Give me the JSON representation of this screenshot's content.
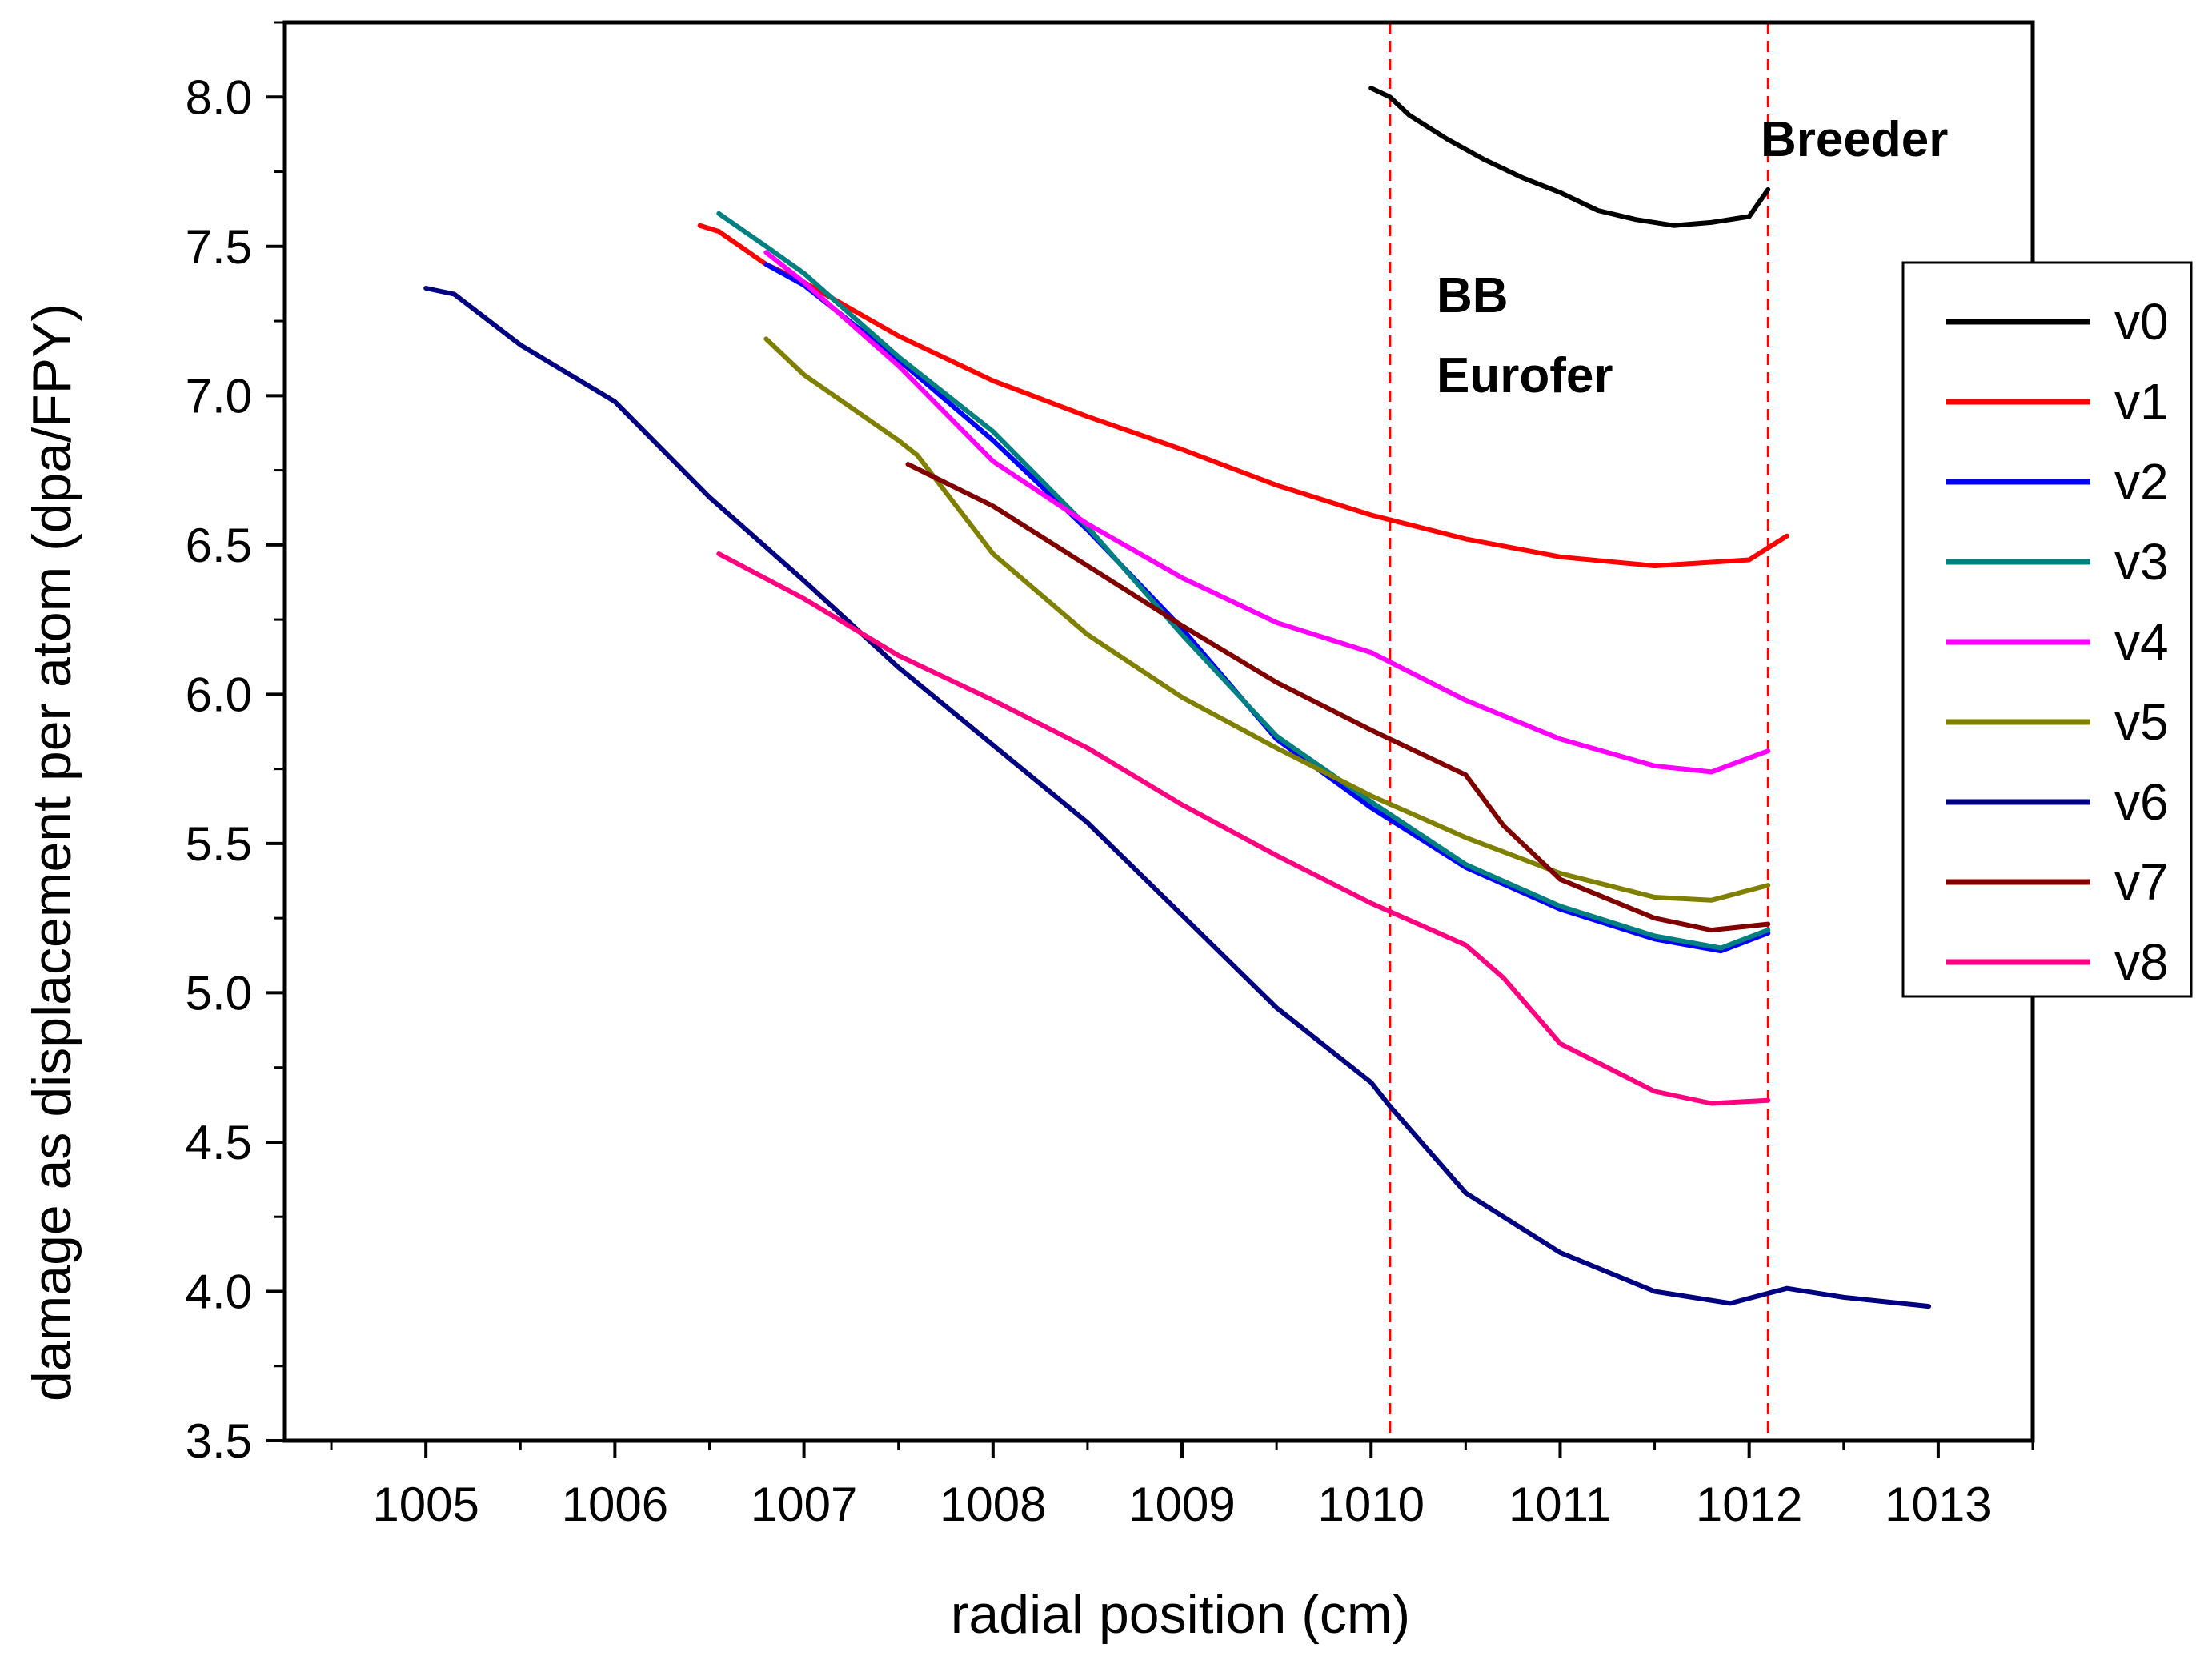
{
  "chart_data": {
    "type": "line",
    "title": "",
    "xlabel": "radial position (cm)",
    "ylabel": "damage as displacement per atom (dpa/FPY)",
    "xlim": [
      1004.25,
      1013.5
    ],
    "ylim": [
      3.5,
      8.25
    ],
    "xticks": [
      "1005",
      "1006",
      "1007",
      "1008",
      "1009",
      "1010",
      "1011",
      "1012",
      "1013"
    ],
    "yticks": [
      "3.5",
      "4.0",
      "4.5",
      "5.0",
      "5.5",
      "6.0",
      "6.5",
      "7.0",
      "7.5",
      "8.0"
    ],
    "grid": false,
    "legend_position": "right",
    "vlines": [
      {
        "x": 1010.1,
        "color": "#ff0000",
        "style": "dashed"
      },
      {
        "x": 1012.1,
        "color": "#ff0000",
        "style": "dashed"
      }
    ],
    "annotations": [
      {
        "text": "Breeder",
        "x": 1012.2,
        "y": 7.8
      },
      {
        "text": "BB",
        "x": 1010.55,
        "y": 7.27
      },
      {
        "text": "Eurofer",
        "x": 1010.55,
        "y": 7.04
      }
    ],
    "series": [
      {
        "name": "v0",
        "color": "#000000",
        "x": [
          1010.0,
          1010.1,
          1010.2,
          1010.4,
          1010.6,
          1010.8,
          1011.0,
          1011.2,
          1011.4,
          1011.6,
          1011.8,
          1012.0,
          1012.1
        ],
        "y": [
          8.03,
          8.0,
          7.94,
          7.86,
          7.79,
          7.73,
          7.68,
          7.62,
          7.59,
          7.57,
          7.58,
          7.6,
          7.69
        ]
      },
      {
        "name": "v1",
        "color": "#ff0000",
        "x": [
          1006.45,
          1006.55,
          1006.8,
          1007.0,
          1007.5,
          1008.0,
          1008.5,
          1009.0,
          1009.5,
          1010.0,
          1010.5,
          1011.0,
          1011.5,
          1012.0,
          1012.2
        ],
        "y": [
          7.57,
          7.55,
          7.44,
          7.38,
          7.2,
          7.05,
          6.93,
          6.82,
          6.7,
          6.6,
          6.52,
          6.46,
          6.43,
          6.45,
          6.53
        ]
      },
      {
        "name": "v2",
        "color": "#0000ff",
        "x": [
          1006.8,
          1007.0,
          1007.5,
          1008.0,
          1008.5,
          1009.0,
          1009.5,
          1010.0,
          1010.5,
          1011.0,
          1011.5,
          1011.85,
          1012.1
        ],
        "y": [
          7.44,
          7.37,
          7.12,
          6.85,
          6.55,
          6.22,
          5.85,
          5.62,
          5.42,
          5.28,
          5.18,
          5.14,
          5.2
        ]
      },
      {
        "name": "v3",
        "color": "#008080",
        "x": [
          1006.55,
          1006.8,
          1007.0,
          1007.5,
          1008.0,
          1008.5,
          1009.0,
          1009.5,
          1010.0,
          1010.5,
          1011.0,
          1011.5,
          1011.85,
          1012.1
        ],
        "y": [
          7.61,
          7.5,
          7.41,
          7.13,
          6.88,
          6.56,
          6.2,
          5.86,
          5.64,
          5.43,
          5.29,
          5.19,
          5.15,
          5.21
        ]
      },
      {
        "name": "v4",
        "color": "#ff00ff",
        "x": [
          1006.8,
          1007.0,
          1007.5,
          1008.0,
          1008.5,
          1009.0,
          1009.5,
          1010.0,
          1010.5,
          1011.0,
          1011.5,
          1011.8,
          1012.1
        ],
        "y": [
          7.48,
          7.38,
          7.1,
          6.78,
          6.57,
          6.39,
          6.24,
          6.14,
          5.98,
          5.85,
          5.76,
          5.74,
          5.81
        ]
      },
      {
        "name": "v5",
        "color": "#808000",
        "x": [
          1006.8,
          1007.0,
          1007.5,
          1007.6,
          1008.0,
          1008.5,
          1009.0,
          1009.5,
          1010.0,
          1010.5,
          1011.0,
          1011.5,
          1011.8,
          1012.1
        ],
        "y": [
          7.19,
          7.07,
          6.85,
          6.8,
          6.47,
          6.2,
          5.99,
          5.82,
          5.66,
          5.52,
          5.4,
          5.32,
          5.31,
          5.36
        ]
      },
      {
        "name": "v6",
        "color": "#000080",
        "x": [
          1005.0,
          1005.15,
          1005.5,
          1006.0,
          1006.5,
          1007.0,
          1007.5,
          1008.0,
          1008.5,
          1009.0,
          1009.5,
          1010.0,
          1010.1,
          1010.5,
          1011.0,
          1011.5,
          1011.9,
          1012.2,
          1012.5,
          1012.95
        ],
        "y": [
          7.36,
          7.34,
          7.17,
          6.98,
          6.66,
          6.38,
          6.09,
          5.83,
          5.57,
          5.26,
          4.95,
          4.7,
          4.62,
          4.33,
          4.13,
          4.0,
          3.96,
          4.01,
          3.98,
          3.95
        ]
      },
      {
        "name": "v7",
        "color": "#800000",
        "x": [
          1007.55,
          1008.0,
          1008.5,
          1009.0,
          1009.5,
          1010.0,
          1010.5,
          1010.7,
          1011.0,
          1011.5,
          1011.8,
          1012.1
        ],
        "y": [
          6.77,
          6.63,
          6.43,
          6.23,
          6.04,
          5.88,
          5.73,
          5.56,
          5.38,
          5.25,
          5.21,
          5.23
        ]
      },
      {
        "name": "v8",
        "color": "#ff0080",
        "x": [
          1006.55,
          1007.0,
          1007.5,
          1008.0,
          1008.5,
          1009.0,
          1009.5,
          1010.0,
          1010.5,
          1010.7,
          1011.0,
          1011.5,
          1011.8,
          1012.1
        ],
        "y": [
          6.47,
          6.32,
          6.13,
          5.98,
          5.82,
          5.63,
          5.46,
          5.3,
          5.16,
          5.05,
          4.83,
          4.67,
          4.63,
          4.64
        ]
      }
    ]
  }
}
